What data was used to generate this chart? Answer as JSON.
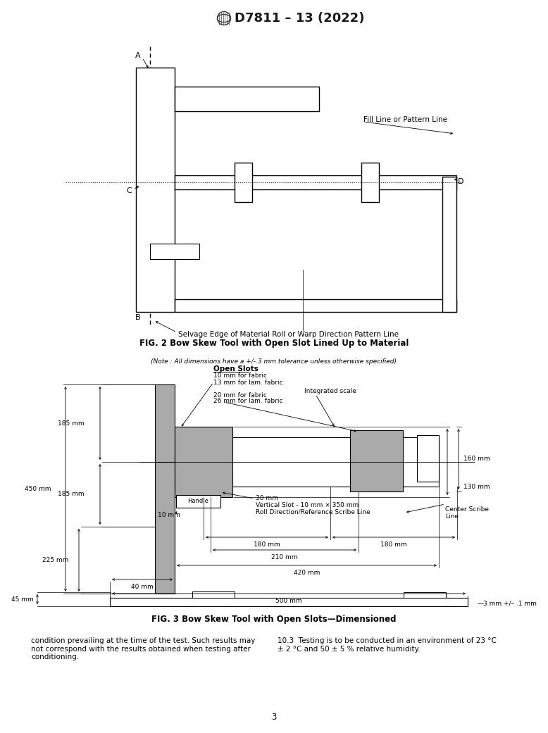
{
  "title": "D7811 – 13 (2022)",
  "fig2_caption": "FIG. 2 Bow Skew Tool with Open Slot Lined Up to Material",
  "fig3_caption": "FIG. 3 Bow Skew Tool with Open Slots—Dimensioned",
  "bottom_left_text": "condition prevailing at the time of the test. Such results may\nnot correspond with the results obtained when testing after\nconditioning.",
  "bottom_right_text": "10.3  Testing is to be conducted in an environment of 23 °C\n± 2 °C and 50 ± 5 % relative humidity.",
  "page_number": "3",
  "background": "#ffffff",
  "note_text": "(Note : All dimensions have a +/-.3 mm tolerance unless otherwise specified)",
  "open_slots_label": "Open Slots",
  "dim_10mm": "10 mm for fabric",
  "dim_13mm": "13 mm for lam. fabric",
  "dim_20mm": "20 mm for fabric",
  "dim_26mm": "26 mm for lam. fabric",
  "int_scale": "Integrated scale",
  "dim_160mm": "160 mm",
  "dim_450mm": "450 mm",
  "dim_185mm_top": "185 mm",
  "dim_185mm_bot": "185 mm",
  "dim_225mm": "225 mm",
  "dim_130mm": "130 mm",
  "dim_180mm_left": "180 mm",
  "dim_180mm_right": "180 mm",
  "dim_210mm": "210 mm",
  "dim_handle": "Handle",
  "dim_30mm": "30 mm",
  "dim_vertical_slot": "Vertical Slot - 10 mm × 350 mm",
  "dim_10mm_b": "10 mm",
  "dim_roll_dir": "Roll Direction/Reference Scribe Line",
  "dim_420mm": "420 mm",
  "dim_40mm": "40 mm",
  "dim_500mm": "500 mm",
  "dim_45mm": "45 mm",
  "dim_3mm": "3 mm +/– .1 mm",
  "center_scribe": "Center Scribe\nLine",
  "fill_line": "Fill Line or Pattern Line",
  "selvage": "Selvage Edge of Material Roll or Warp Direction Pattern Line",
  "label_A": "A",
  "label_B": "B",
  "label_C": "C",
  "label_D": "D"
}
